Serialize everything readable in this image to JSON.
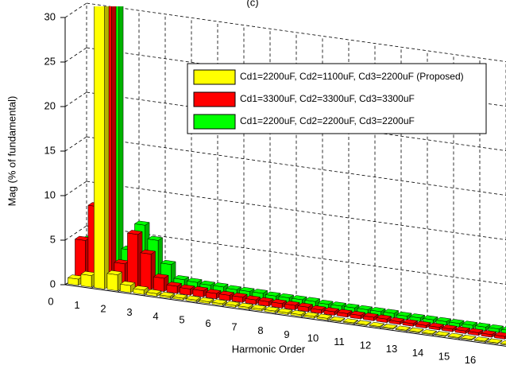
{
  "chart_data": {
    "type": "bar3d",
    "title": "(c)",
    "xlabel": "Harmonic Order",
    "ylabel": "Mag (% of fundamental)",
    "x": [
      0.5,
      1,
      1.5,
      2,
      2.5,
      3,
      3.5,
      4,
      4.5,
      5,
      5.5,
      6,
      6.5,
      7,
      7.5,
      8,
      8.5,
      9,
      9.5,
      10,
      10.5,
      11,
      11.5,
      12,
      12.5,
      13,
      13.5,
      14,
      14.5,
      15,
      15.5,
      16,
      16.5,
      17
    ],
    "xlim": [
      0,
      17
    ],
    "xticks": [
      0,
      1,
      2,
      3,
      4,
      5,
      6,
      7,
      8,
      9,
      10,
      11,
      12,
      13,
      14,
      15,
      16
    ],
    "ylim": [
      0,
      30
    ],
    "yticks": [
      0,
      5,
      10,
      15,
      20,
      25,
      30
    ],
    "grid": true,
    "legend_loc": "upper right",
    "series": [
      {
        "name": "Cd1=2200uF, Cd2=1100uF, Cd3=2200uF (Proposed)",
        "color": "#ffff00",
        "values": [
          0.7,
          1.3,
          100,
          1.8,
          0.8,
          0.5,
          0.3,
          0.2,
          0.2,
          0.2,
          0.2,
          0.2,
          0.2,
          0.2,
          0.2,
          0.2,
          0.2,
          0.2,
          0.2,
          0.2,
          0.1,
          0.1,
          0.1,
          0.1,
          0.1,
          0.1,
          0.1,
          0.1,
          0.1,
          0.1,
          0.1,
          0.1,
          0.1,
          0.1
        ]
      },
      {
        "name": "Cd1=3300uF, Cd2=3300uF, Cd3=3300uF",
        "color": "#ff0000",
        "values": [
          4.5,
          8.5,
          100,
          2.5,
          6,
          4,
          1.5,
          0.8,
          0.7,
          0.7,
          0.6,
          0.6,
          0.6,
          0.5,
          0.5,
          0.5,
          0.5,
          0.5,
          0.4,
          0.4,
          0.4,
          0.4,
          0.4,
          0.4,
          0.3,
          0.3,
          0.3,
          0.3,
          0.3,
          0.3,
          0.3,
          0.3,
          0.3,
          0.3
        ]
      },
      {
        "name": "Cd1=2200uF, Cd2=2200uF, Cd3=2200uF",
        "color": "#00ff00",
        "values": [
          4,
          10.5,
          100,
          3.5,
          6.5,
          5,
          2.5,
          1,
          0.9,
          0.8,
          0.8,
          0.7,
          0.7,
          0.7,
          0.6,
          0.6,
          0.6,
          0.6,
          0.5,
          0.5,
          0.5,
          0.5,
          0.5,
          0.5,
          0.4,
          0.4,
          0.4,
          0.4,
          0.4,
          0.4,
          0.4,
          0.4,
          0.4,
          0.4
        ]
      }
    ]
  }
}
